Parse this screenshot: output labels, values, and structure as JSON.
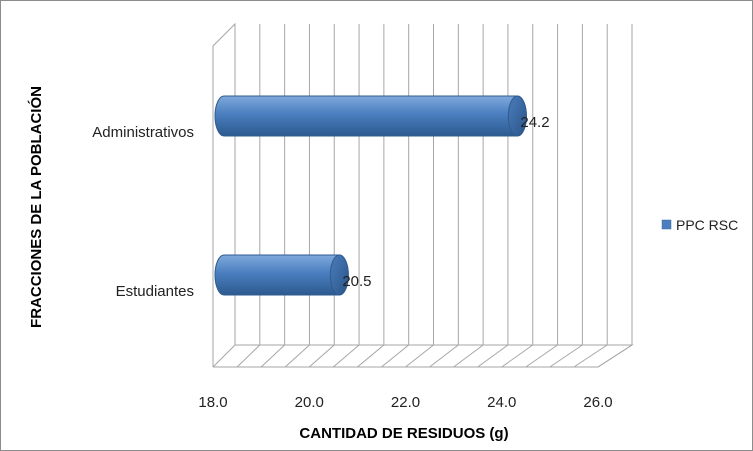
{
  "chart_data": {
    "type": "bar",
    "orientation": "horizontal",
    "three_d": true,
    "categories": [
      "Administrativos",
      "Estudiantes"
    ],
    "series": [
      {
        "name": "PPC RSC",
        "values": [
          24.2,
          20.5
        ],
        "color": "#4a7ebf"
      }
    ],
    "data_labels": [
      "24.2",
      "20.5"
    ],
    "xlabel": "CANTIDAD DE RESIDUOS (g)",
    "ylabel": "FRACCIONES DE LA POBLACIÓN",
    "xlim": [
      18.0,
      26.0
    ],
    "x_ticks": [
      "18.0",
      "20.0",
      "22.0",
      "24.0",
      "26.0"
    ],
    "x_minor_step": 0.5,
    "grid": true,
    "legend_position": "right"
  }
}
